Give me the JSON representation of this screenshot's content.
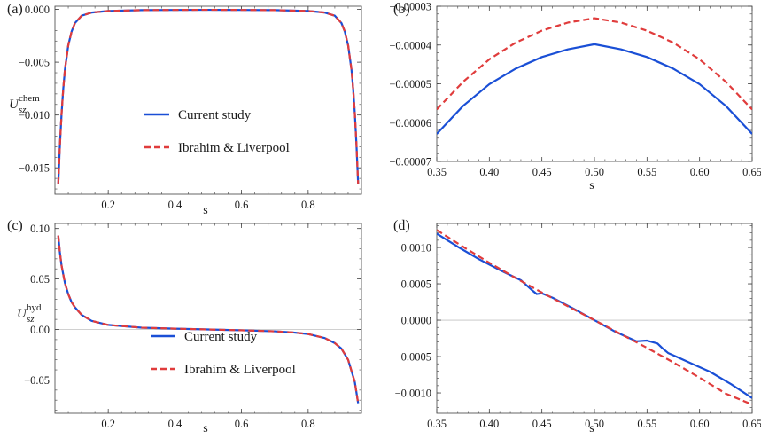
{
  "colors": {
    "series_a": "#1a4fd6",
    "series_b": "#e03c3c",
    "zero_line": "#c0c0c0"
  },
  "chart_data": [
    {
      "panel": "(a)",
      "type": "line",
      "xlabel": "s",
      "ylabel_main": "U",
      "ylabel_sub": "sz",
      "ylabel_sup": "chem",
      "xlim": [
        0.04,
        0.96
      ],
      "ylim": [
        -0.0175,
        0.0003
      ],
      "xticks": [
        {
          "v": 0.2,
          "t": "0.2"
        },
        {
          "v": 0.4,
          "t": "0.4"
        },
        {
          "v": 0.6,
          "t": "0.6"
        },
        {
          "v": 0.8,
          "t": "0.8"
        }
      ],
      "yticks": [
        {
          "v": 0.0,
          "t": "0.000"
        },
        {
          "v": -0.005,
          "t": "−0.005"
        },
        {
          "v": -0.01,
          "t": "−0.010"
        },
        {
          "v": -0.015,
          "t": "−0.015"
        }
      ],
      "zero_line": false,
      "legend": {
        "placement": "center",
        "labels": [
          "Current study",
          "Ibrahim & Liverpool"
        ]
      },
      "series": [
        {
          "name": "Current study",
          "style": "solid",
          "x": [
            0.05,
            0.055,
            0.06,
            0.065,
            0.07,
            0.08,
            0.09,
            0.1,
            0.12,
            0.15,
            0.2,
            0.3,
            0.4,
            0.5,
            0.6,
            0.7,
            0.8,
            0.85,
            0.88,
            0.9,
            0.91,
            0.92,
            0.93,
            0.935,
            0.94,
            0.945,
            0.95
          ],
          "y": [
            -0.0165,
            -0.0128,
            -0.0098,
            -0.0075,
            -0.0057,
            -0.0034,
            -0.0021,
            -0.0013,
            -0.0006,
            -0.0003,
            -0.00015,
            -7e-05,
            -5e-05,
            -4e-05,
            -5e-05,
            -7e-05,
            -0.00015,
            -0.0003,
            -0.0006,
            -0.0013,
            -0.0021,
            -0.0034,
            -0.0057,
            -0.0075,
            -0.0098,
            -0.0128,
            -0.0165
          ]
        },
        {
          "name": "Ibrahim & Liverpool",
          "style": "dashed",
          "x": [
            0.05,
            0.055,
            0.06,
            0.065,
            0.07,
            0.08,
            0.09,
            0.1,
            0.12,
            0.15,
            0.2,
            0.3,
            0.4,
            0.5,
            0.6,
            0.7,
            0.8,
            0.85,
            0.88,
            0.9,
            0.91,
            0.92,
            0.93,
            0.935,
            0.94,
            0.945,
            0.95
          ],
          "y": [
            -0.0165,
            -0.0128,
            -0.0098,
            -0.0075,
            -0.0057,
            -0.0034,
            -0.0021,
            -0.0013,
            -0.0006,
            -0.0003,
            -0.00015,
            -7e-05,
            -5e-05,
            -4e-05,
            -5e-05,
            -7e-05,
            -0.00015,
            -0.0003,
            -0.0006,
            -0.0013,
            -0.0021,
            -0.0034,
            -0.0057,
            -0.0075,
            -0.0098,
            -0.0128,
            -0.0165
          ]
        }
      ]
    },
    {
      "panel": "(b)",
      "type": "line",
      "xlabel": "s",
      "xlim": [
        0.35,
        0.65
      ],
      "ylim": [
        -7e-05,
        -3e-05
      ],
      "xticks": [
        {
          "v": 0.35,
          "t": "0.35"
        },
        {
          "v": 0.4,
          "t": "0.40"
        },
        {
          "v": 0.45,
          "t": "0.45"
        },
        {
          "v": 0.5,
          "t": "0.50"
        },
        {
          "v": 0.55,
          "t": "0.55"
        },
        {
          "v": 0.6,
          "t": "0.60"
        },
        {
          "v": 0.65,
          "t": "0.65"
        }
      ],
      "yticks": [
        {
          "v": -3e-05,
          "t": "−0.00003"
        },
        {
          "v": -4e-05,
          "t": "−0.00004"
        },
        {
          "v": -5e-05,
          "t": "−0.00005"
        },
        {
          "v": -6e-05,
          "t": "−0.00006"
        },
        {
          "v": -7e-05,
          "t": "−0.00007"
        }
      ],
      "zero_line": false,
      "series": [
        {
          "name": "Current study",
          "style": "solid",
          "x": [
            0.35,
            0.375,
            0.4,
            0.425,
            0.45,
            0.475,
            0.5,
            0.525,
            0.55,
            0.575,
            0.6,
            0.625,
            0.65
          ],
          "y": [
            -6.29e-05,
            -5.57e-05,
            -5.01e-05,
            -4.61e-05,
            -4.31e-05,
            -4.11e-05,
            -3.98e-05,
            -4.11e-05,
            -4.31e-05,
            -4.61e-05,
            -5.01e-05,
            -5.57e-05,
            -6.29e-05
          ]
        },
        {
          "name": "Ibrahim & Liverpool",
          "style": "dashed",
          "x": [
            0.35,
            0.375,
            0.4,
            0.425,
            0.45,
            0.475,
            0.5,
            0.525,
            0.55,
            0.575,
            0.6,
            0.625,
            0.65
          ],
          "y": [
            -5.66e-05,
            -4.95e-05,
            -4.37e-05,
            -3.94e-05,
            -3.63e-05,
            -3.42e-05,
            -3.31e-05,
            -3.42e-05,
            -3.63e-05,
            -3.94e-05,
            -4.37e-05,
            -4.95e-05,
            -5.66e-05
          ]
        }
      ]
    },
    {
      "panel": "(c)",
      "type": "line",
      "xlabel": "s",
      "ylabel_main": "U",
      "ylabel_sub": "sz",
      "ylabel_sup": "hyd",
      "xlim": [
        0.04,
        0.96
      ],
      "ylim": [
        -0.083,
        0.105
      ],
      "xticks": [
        {
          "v": 0.2,
          "t": "0.2"
        },
        {
          "v": 0.4,
          "t": "0.4"
        },
        {
          "v": 0.6,
          "t": "0.6"
        },
        {
          "v": 0.8,
          "t": "0.8"
        }
      ],
      "yticks": [
        {
          "v": 0.1,
          "t": "0.10"
        },
        {
          "v": 0.05,
          "t": "0.05"
        },
        {
          "v": 0.0,
          "t": "0.00"
        },
        {
          "v": -0.05,
          "t": "−0.05"
        }
      ],
      "zero_line": true,
      "legend": {
        "placement": "bottom-center",
        "labels": [
          "Current study",
          "Ibrahim & Liverpool"
        ]
      },
      "series": [
        {
          "name": "Current study",
          "style": "solid",
          "x": [
            0.05,
            0.055,
            0.06,
            0.07,
            0.08,
            0.09,
            0.1,
            0.12,
            0.15,
            0.2,
            0.3,
            0.4,
            0.5,
            0.6,
            0.7,
            0.75,
            0.8,
            0.85,
            0.88,
            0.9,
            0.92,
            0.94,
            0.95
          ],
          "y": [
            0.093,
            0.076,
            0.063,
            0.046,
            0.035,
            0.027,
            0.022,
            0.0145,
            0.0085,
            0.0045,
            0.0018,
            0.0008,
            0.0,
            -0.0008,
            -0.0018,
            -0.0028,
            -0.0045,
            -0.0085,
            -0.0135,
            -0.019,
            -0.03,
            -0.052,
            -0.073
          ]
        },
        {
          "name": "Ibrahim & Liverpool",
          "style": "dashed",
          "x": [
            0.05,
            0.055,
            0.06,
            0.07,
            0.08,
            0.09,
            0.1,
            0.12,
            0.15,
            0.2,
            0.3,
            0.4,
            0.5,
            0.6,
            0.7,
            0.75,
            0.8,
            0.85,
            0.88,
            0.9,
            0.92,
            0.94,
            0.95
          ],
          "y": [
            0.093,
            0.076,
            0.063,
            0.046,
            0.035,
            0.027,
            0.022,
            0.0145,
            0.0085,
            0.0045,
            0.0018,
            0.0008,
            0.0,
            -0.0008,
            -0.0018,
            -0.0028,
            -0.0045,
            -0.0085,
            -0.0135,
            -0.019,
            -0.03,
            -0.052,
            -0.073
          ]
        }
      ]
    },
    {
      "panel": "(d)",
      "type": "line",
      "xlabel": "s",
      "xlim": [
        0.35,
        0.65
      ],
      "ylim": [
        -0.00128,
        0.00133
      ],
      "xticks": [
        {
          "v": 0.35,
          "t": "0.35"
        },
        {
          "v": 0.4,
          "t": "0.40"
        },
        {
          "v": 0.45,
          "t": "0.45"
        },
        {
          "v": 0.5,
          "t": "0.50"
        },
        {
          "v": 0.55,
          "t": "0.55"
        },
        {
          "v": 0.6,
          "t": "0.60"
        },
        {
          "v": 0.65,
          "t": "0.65"
        }
      ],
      "yticks": [
        {
          "v": 0.001,
          "t": "0.0010"
        },
        {
          "v": 0.0005,
          "t": "0.0005"
        },
        {
          "v": 0.0,
          "t": "0.0000"
        },
        {
          "v": -0.0005,
          "t": "−0.0005"
        },
        {
          "v": -0.001,
          "t": "−0.0010"
        }
      ],
      "zero_line": true,
      "series": [
        {
          "name": "Current study",
          "style": "solid",
          "x": [
            0.35,
            0.37,
            0.39,
            0.41,
            0.43,
            0.44,
            0.445,
            0.45,
            0.46,
            0.48,
            0.5,
            0.52,
            0.54,
            0.55,
            0.56,
            0.565,
            0.57,
            0.59,
            0.61,
            0.63,
            0.65
          ],
          "y": [
            0.00119,
            0.00101,
            0.00084,
            0.00069,
            0.00055,
            0.00042,
            0.00036,
            0.00037,
            0.00031,
            0.00016,
            0.0,
            -0.00016,
            -0.00029,
            -0.00028,
            -0.00032,
            -0.00039,
            -0.00045,
            -0.00058,
            -0.00071,
            -0.00088,
            -0.00107
          ]
        },
        {
          "name": "Ibrahim & Liverpool",
          "style": "dashed",
          "x": [
            0.35,
            0.375,
            0.4,
            0.425,
            0.45,
            0.475,
            0.5,
            0.525,
            0.55,
            0.575,
            0.6,
            0.625,
            0.65
          ],
          "y": [
            0.00124,
            0.00101,
            0.00079,
            0.00058,
            0.00038,
            0.00019,
            0.0,
            -0.00019,
            -0.00038,
            -0.00058,
            -0.00079,
            -0.00101,
            -0.00116
          ]
        }
      ]
    }
  ]
}
